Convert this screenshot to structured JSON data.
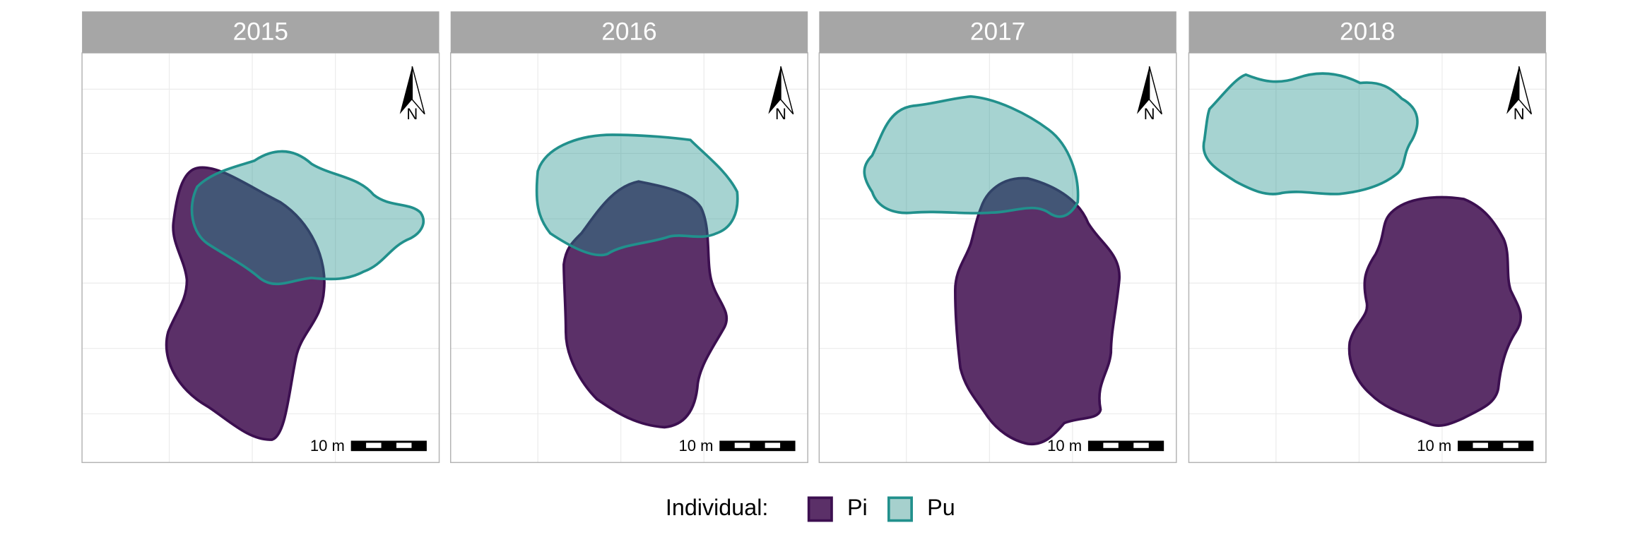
{
  "panels": [
    {
      "title": "2015"
    },
    {
      "title": "2016"
    },
    {
      "title": "2017"
    },
    {
      "title": "2018"
    }
  ],
  "north_label": "N",
  "scale_label": "10 m",
  "legend": {
    "title": "Individual:",
    "items": [
      "Pi",
      "Pu"
    ]
  }
}
